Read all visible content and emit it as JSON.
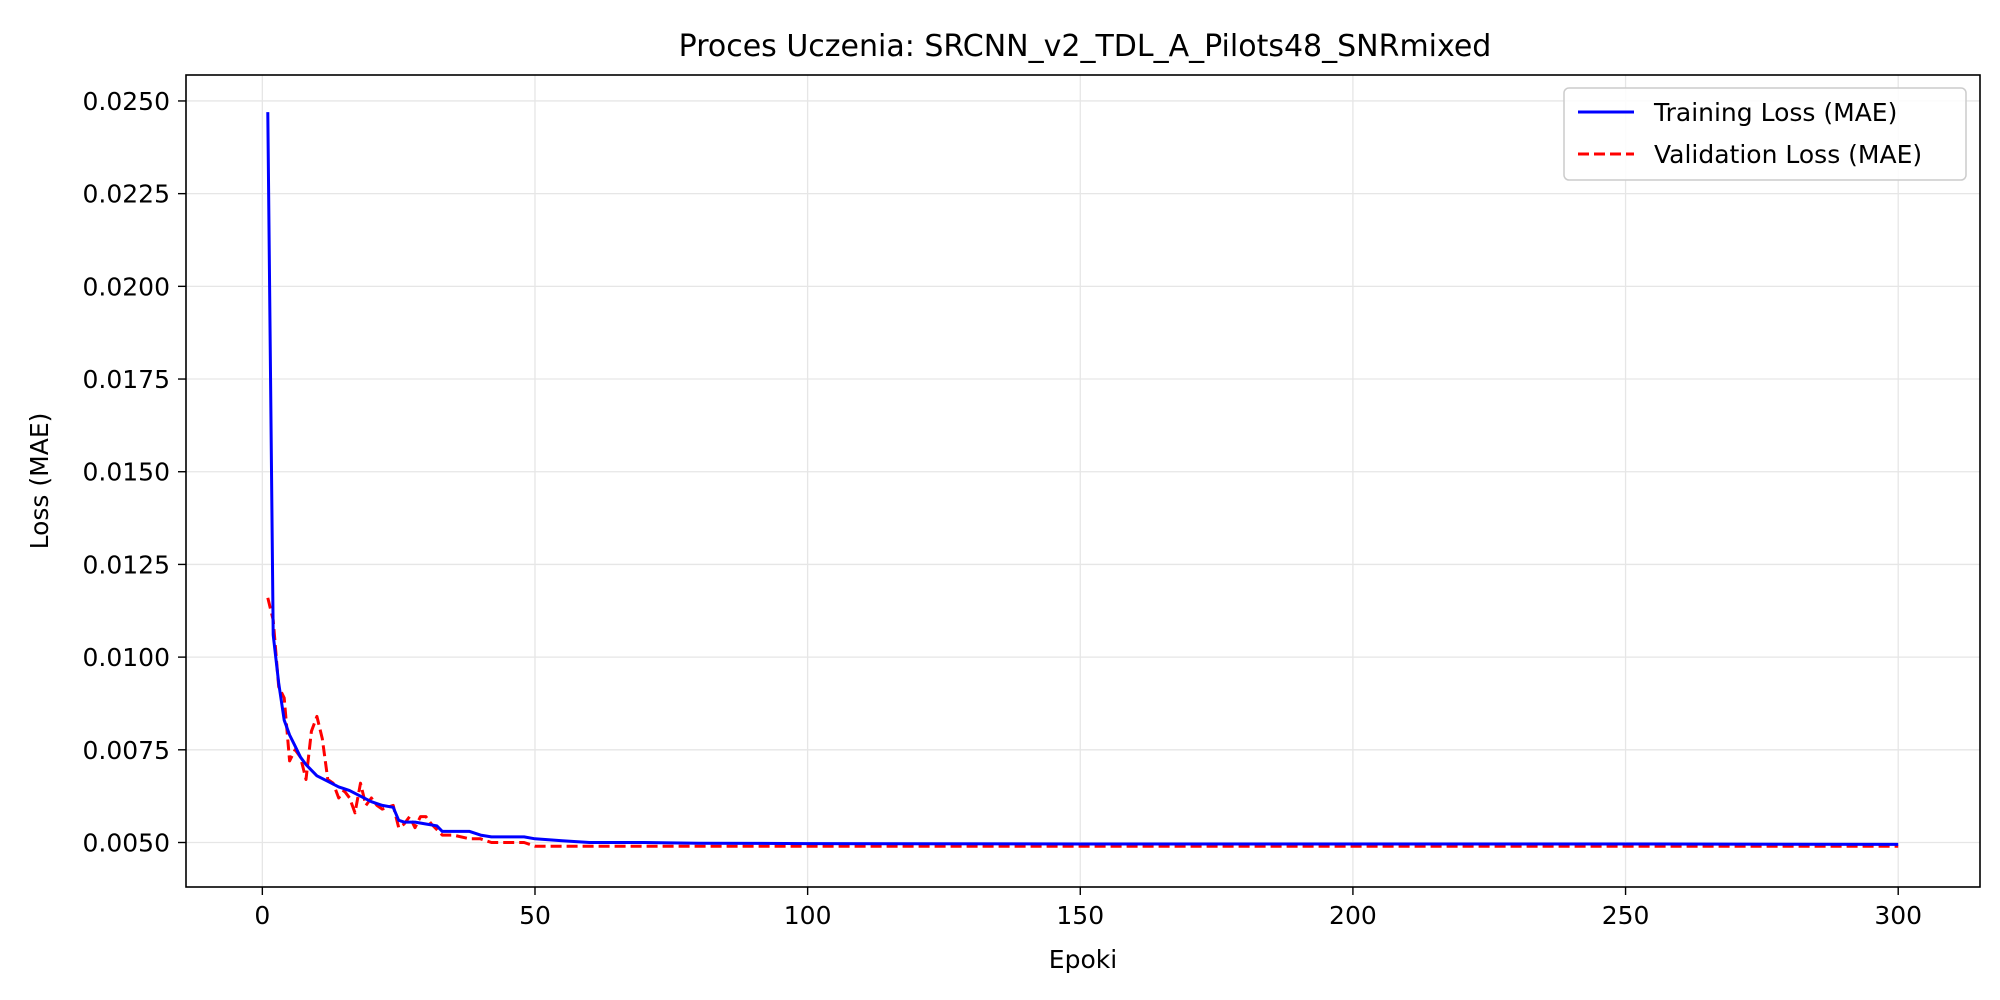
{
  "chart_data": {
    "type": "line",
    "title": "Proces Uczenia: SRCNN_v2_TDL_A_Pilots48_SNRmixed",
    "xlabel": "Epoki",
    "ylabel": "Loss (MAE)",
    "xlim": [
      -14,
      315
    ],
    "ylim": [
      0.0038,
      0.0257
    ],
    "xticks": [
      0,
      50,
      100,
      150,
      200,
      250,
      300
    ],
    "yticks": [
      0.005,
      0.0075,
      0.01,
      0.0125,
      0.015,
      0.0175,
      0.02,
      0.0225,
      0.025
    ],
    "ytick_labels": [
      "0.0050",
      "0.0075",
      "0.0100",
      "0.0125",
      "0.0150",
      "0.0175",
      "0.0200",
      "0.0225",
      "0.0250"
    ],
    "grid": true,
    "legend_position": "top-right",
    "series": [
      {
        "name": "Training Loss (MAE)",
        "color": "#0000ff",
        "style": "solid",
        "x": [
          1,
          2,
          3,
          4,
          5,
          6,
          7,
          8,
          9,
          10,
          12,
          14,
          15,
          16,
          18,
          20,
          22,
          24,
          25,
          26,
          28,
          30,
          32,
          33,
          35,
          38,
          40,
          42,
          45,
          48,
          50,
          55,
          60,
          65,
          70,
          80,
          100,
          150,
          200,
          250,
          300
        ],
        "values": [
          0.0247,
          0.0106,
          0.0093,
          0.0083,
          0.0079,
          0.0076,
          0.0073,
          0.0071,
          0.00695,
          0.0068,
          0.00665,
          0.0065,
          0.00645,
          0.0064,
          0.00625,
          0.0061,
          0.006,
          0.00595,
          0.0056,
          0.00555,
          0.00555,
          0.0055,
          0.00545,
          0.0053,
          0.0053,
          0.0053,
          0.0052,
          0.00515,
          0.00515,
          0.00515,
          0.0051,
          0.00505,
          0.005,
          0.005,
          0.005,
          0.00498,
          0.00497,
          0.00496,
          0.00496,
          0.00496,
          0.00495
        ]
      },
      {
        "name": "Validation Loss (MAE)",
        "color": "#ff0000",
        "style": "dashed",
        "x": [
          1,
          2,
          3,
          4,
          5,
          6,
          7,
          8,
          9,
          10,
          11,
          12,
          13,
          14,
          15,
          16,
          17,
          18,
          19,
          20,
          21,
          22,
          24,
          25,
          26,
          27,
          28,
          29,
          30,
          31,
          33,
          35,
          38,
          40,
          42,
          45,
          48,
          50,
          55,
          60,
          70,
          80,
          100,
          150,
          200,
          250,
          300
        ],
        "values": [
          0.0116,
          0.011,
          0.0092,
          0.0089,
          0.0072,
          0.0075,
          0.0073,
          0.0067,
          0.008,
          0.0084,
          0.0078,
          0.0067,
          0.0066,
          0.0062,
          0.0064,
          0.0062,
          0.0058,
          0.0066,
          0.006,
          0.0062,
          0.006,
          0.0059,
          0.006,
          0.0054,
          0.0055,
          0.0057,
          0.0054,
          0.0057,
          0.0057,
          0.0055,
          0.0052,
          0.0052,
          0.0051,
          0.0051,
          0.005,
          0.005,
          0.005,
          0.0049,
          0.0049,
          0.0049,
          0.0049,
          0.0049,
          0.0049,
          0.0049,
          0.0049,
          0.0049,
          0.0049
        ]
      }
    ]
  }
}
